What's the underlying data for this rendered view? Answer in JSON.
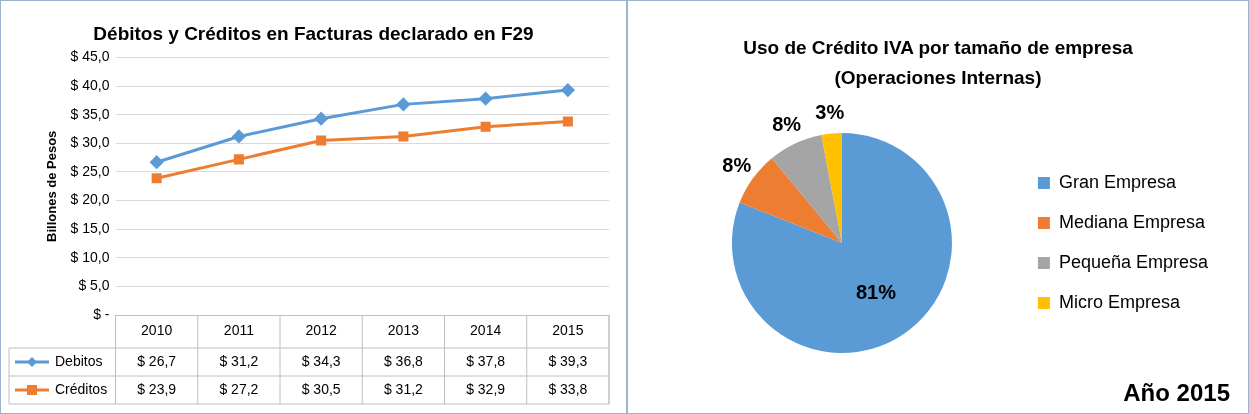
{
  "chart_data": [
    {
      "type": "line",
      "title": "Débitos y Créditos en Facturas declarado en F29",
      "ylabel": "Billones de Pesos",
      "categories": [
        "2010",
        "2011",
        "2012",
        "2013",
        "2014",
        "2015"
      ],
      "series": [
        {
          "name": "Debitos",
          "color": "#5b9bd5",
          "marker": "diamond",
          "values": [
            26.7,
            31.2,
            34.3,
            36.8,
            37.8,
            39.3
          ],
          "value_labels": [
            "$ 26,7",
            "$ 31,2",
            "$ 34,3",
            "$ 36,8",
            "$ 37,8",
            "$ 39,3"
          ]
        },
        {
          "name": "Créditos",
          "color": "#ed7d31",
          "marker": "square",
          "values": [
            23.9,
            27.2,
            30.5,
            31.2,
            32.9,
            33.8
          ],
          "value_labels": [
            "$ 23,9",
            "$ 27,2",
            "$ 30,5",
            "$ 31,2",
            "$ 32,9",
            "$ 33,8"
          ]
        }
      ],
      "ylim": [
        0,
        45
      ],
      "yticks": [
        {
          "value": 0,
          "label": "$ -"
        },
        {
          "value": 5,
          "label": "$ 5,0"
        },
        {
          "value": 10,
          "label": "$ 10,0"
        },
        {
          "value": 15,
          "label": "$ 15,0"
        },
        {
          "value": 20,
          "label": "$ 20,0"
        },
        {
          "value": 25,
          "label": "$ 25,0"
        },
        {
          "value": 30,
          "label": "$ 30,0"
        },
        {
          "value": 35,
          "label": "$ 35,0"
        },
        {
          "value": 40,
          "label": "$ 40,0"
        },
        {
          "value": 45,
          "label": "$ 45,0"
        }
      ],
      "grid": "y",
      "legend": "bottom"
    },
    {
      "type": "pie",
      "title": "Uso de Crédito IVA  por tamaño de empresa (Operaciones Internas)",
      "categories": [
        "Gran Empresa",
        "Mediana Empresa",
        "Pequeña Empresa",
        "Micro Empresa"
      ],
      "values": [
        81,
        8,
        8,
        3
      ],
      "colors": [
        "#5b9bd5",
        "#ed7d31",
        "#a5a5a5",
        "#ffc000"
      ],
      "value_labels": [
        "81%",
        "8%",
        "8%",
        "3%"
      ],
      "legend": "right",
      "annotations": [
        "Año 2015"
      ]
    }
  ]
}
